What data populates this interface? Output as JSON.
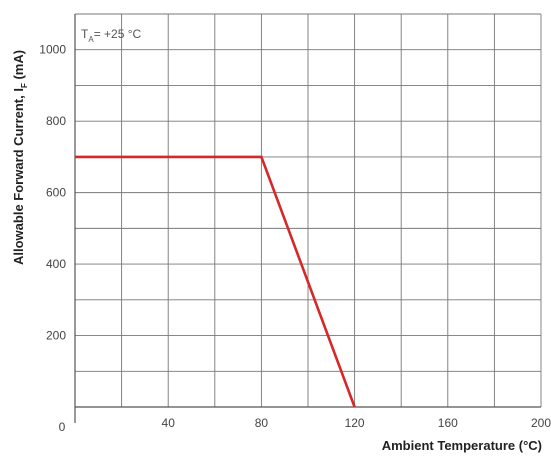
{
  "chart_data": {
    "type": "line",
    "xlabel": "Ambient Temperature (°C)",
    "ylabel": "Allowable Forward Current,  I",
    "ylabel_sub": "F",
    "ylabel_unit": " (mA)",
    "annotation": {
      "prefix": "T",
      "sub": "A",
      "text": "= +25 °C"
    },
    "xlim": [
      0,
      200
    ],
    "ylim": [
      0,
      1100
    ],
    "xticks": [
      40,
      80,
      120,
      160,
      200
    ],
    "yticks": [
      200,
      400,
      600,
      800,
      1000
    ],
    "origin_label": "0",
    "grid": true,
    "series": [
      {
        "color": "#d62828",
        "x": [
          0,
          80,
          120
        ],
        "y": [
          700,
          700,
          0
        ]
      }
    ]
  }
}
